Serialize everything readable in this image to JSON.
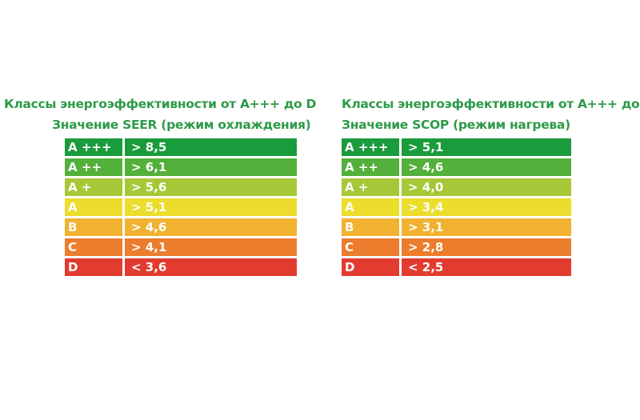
{
  "chart_data": [
    {
      "type": "table",
      "title": "Классы энергоэффективности от A+++ до D",
      "subtitle": "Значение SEER (режим охлаждения)",
      "rows": [
        {
          "class": "A +++",
          "value": "> 8,5",
          "color": "#1a9b3c"
        },
        {
          "class": "A ++",
          "value": "> 6,1",
          "color": "#53b03a"
        },
        {
          "class": "A +",
          "value": "> 5,6",
          "color": "#a6c838"
        },
        {
          "class": "A",
          "value": "> 5,1",
          "color": "#ecdc2c"
        },
        {
          "class": "B",
          "value": "> 4,6",
          "color": "#f1b131"
        },
        {
          "class": "C",
          "value": "> 4,1",
          "color": "#eb7d2d"
        },
        {
          "class": "D",
          "value": "< 3,6",
          "color": "#e23b30"
        }
      ]
    },
    {
      "type": "table",
      "title": "Классы энергоэффективности от A+++ до D",
      "subtitle": "Значение SCOP (режим нагрева)",
      "rows": [
        {
          "class": "A +++",
          "value": "> 5,1",
          "color": "#1a9b3c"
        },
        {
          "class": "A ++",
          "value": "> 4,6",
          "color": "#53b03a"
        },
        {
          "class": "A +",
          "value": "> 4,0",
          "color": "#a6c838"
        },
        {
          "class": "A",
          "value": "> 3,4",
          "color": "#ecdc2c"
        },
        {
          "class": "B",
          "value": "> 3,1",
          "color": "#f1b131"
        },
        {
          "class": "C",
          "value": "> 2,8",
          "color": "#eb7d2d"
        },
        {
          "class": "D",
          "value": "< 2,5",
          "color": "#e23b30"
        }
      ]
    }
  ]
}
